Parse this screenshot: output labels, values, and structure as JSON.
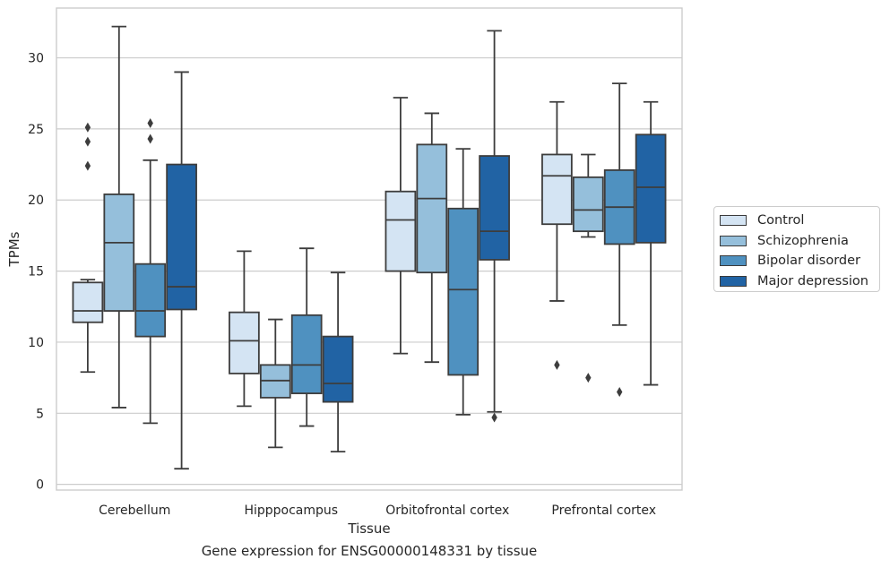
{
  "caption": "Gene expression for ENSG00000148331 by tissue",
  "chart_data": {
    "type": "box",
    "title": "",
    "xlabel": "Tissue",
    "ylabel": "TPMs",
    "ylim": [
      -0.4,
      33.5
    ],
    "yticks": [
      0,
      5,
      10,
      15,
      20,
      25,
      30
    ],
    "grid": "horizontal",
    "legend_position": "right",
    "categories": [
      "Cerebellum",
      "Hipppocampus",
      "Orbitofrontal cortex",
      "Prefrontal cortex"
    ],
    "series": [
      {
        "name": "Control",
        "color": "#d4e4f3",
        "boxes": [
          {
            "whislo": 7.9,
            "q1": 11.4,
            "med": 12.2,
            "q3": 14.2,
            "whishi": 14.4,
            "fliers": [
              22.4,
              24.1,
              25.1
            ]
          },
          {
            "whislo": 5.5,
            "q1": 7.8,
            "med": 10.1,
            "q3": 12.1,
            "whishi": 16.4,
            "fliers": []
          },
          {
            "whislo": 9.2,
            "q1": 15.0,
            "med": 18.6,
            "q3": 20.6,
            "whishi": 27.2,
            "fliers": []
          },
          {
            "whislo": 12.9,
            "q1": 18.3,
            "med": 21.7,
            "q3": 23.2,
            "whishi": 26.9,
            "fliers": [
              8.4
            ]
          }
        ]
      },
      {
        "name": "Schizophrenia",
        "color": "#95bfdb",
        "boxes": [
          {
            "whislo": 5.4,
            "q1": 12.2,
            "med": 17.0,
            "q3": 20.4,
            "whishi": 32.2,
            "fliers": []
          },
          {
            "whislo": 2.6,
            "q1": 6.1,
            "med": 7.3,
            "q3": 8.4,
            "whishi": 11.6,
            "fliers": []
          },
          {
            "whislo": 8.6,
            "q1": 14.9,
            "med": 20.1,
            "q3": 23.9,
            "whishi": 26.1,
            "fliers": []
          },
          {
            "whislo": 17.4,
            "q1": 17.8,
            "med": 19.3,
            "q3": 21.6,
            "whishi": 23.2,
            "fliers": [
              7.5
            ]
          }
        ]
      },
      {
        "name": "Bipolar disorder",
        "color": "#4f91c0",
        "boxes": [
          {
            "whislo": 4.3,
            "q1": 10.4,
            "med": 12.2,
            "q3": 15.5,
            "whishi": 22.8,
            "fliers": [
              24.3,
              25.4
            ]
          },
          {
            "whislo": 4.1,
            "q1": 6.4,
            "med": 8.4,
            "q3": 11.9,
            "whishi": 16.6,
            "fliers": []
          },
          {
            "whislo": 4.9,
            "q1": 7.7,
            "med": 13.7,
            "q3": 19.4,
            "whishi": 23.6,
            "fliers": []
          },
          {
            "whislo": 11.2,
            "q1": 16.9,
            "med": 19.5,
            "q3": 22.1,
            "whishi": 28.2,
            "fliers": [
              6.5
            ]
          }
        ]
      },
      {
        "name": "Major depression",
        "color": "#2163a4",
        "boxes": [
          {
            "whislo": 1.1,
            "q1": 12.3,
            "med": 13.9,
            "q3": 22.5,
            "whishi": 29.0,
            "fliers": []
          },
          {
            "whislo": 2.3,
            "q1": 5.8,
            "med": 7.1,
            "q3": 10.4,
            "whishi": 14.9,
            "fliers": []
          },
          {
            "whislo": 5.1,
            "q1": 15.8,
            "med": 17.8,
            "q3": 23.1,
            "whishi": 31.9,
            "fliers": [
              4.7
            ]
          },
          {
            "whislo": 7.0,
            "q1": 17.0,
            "med": 20.9,
            "q3": 24.6,
            "whishi": 26.9,
            "fliers": []
          }
        ]
      }
    ]
  }
}
